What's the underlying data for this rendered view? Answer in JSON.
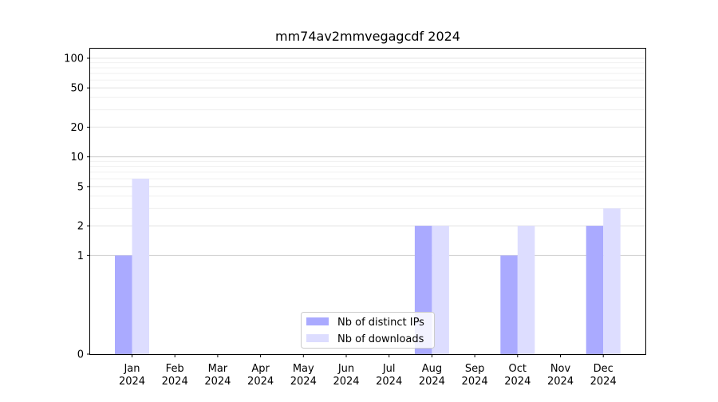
{
  "chart_data": {
    "type": "bar",
    "title": "mm74av2mmvegagcdf 2024",
    "xlabel": "",
    "ylabel": "",
    "scale": "symlog",
    "grid": true,
    "legend_position": "bottom-center",
    "categories": [
      [
        "Jan",
        "2024"
      ],
      [
        "Feb",
        "2024"
      ],
      [
        "Mar",
        "2024"
      ],
      [
        "Apr",
        "2024"
      ],
      [
        "May",
        "2024"
      ],
      [
        "Jun",
        "2024"
      ],
      [
        "Jul",
        "2024"
      ],
      [
        "Aug",
        "2024"
      ],
      [
        "Sep",
        "2024"
      ],
      [
        "Oct",
        "2024"
      ],
      [
        "Nov",
        "2024"
      ],
      [
        "Dec",
        "2024"
      ]
    ],
    "yticks": [
      0,
      1,
      2,
      5,
      10,
      20,
      50,
      100
    ],
    "series": [
      {
        "name": "Nb of distinct IPs",
        "color": "#aaaaff",
        "values": [
          1,
          0,
          0,
          0,
          0,
          0,
          0,
          2,
          0,
          1,
          0,
          2
        ]
      },
      {
        "name": "Nb of downloads",
        "color": "#ddddff",
        "values": [
          6,
          0,
          0,
          0,
          0,
          0,
          0,
          2,
          0,
          2,
          0,
          3
        ]
      }
    ]
  }
}
